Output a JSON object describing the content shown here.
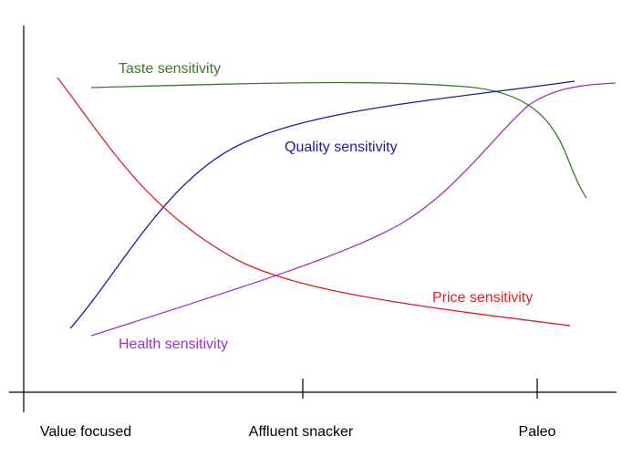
{
  "x_axis": {
    "labels": [
      "Value focused",
      "Affluent snacker",
      "Paleo"
    ]
  },
  "curves": [
    {
      "label": "Taste sensitivity",
      "color": "#3c7a2a"
    },
    {
      "label": "Quality sensitivity",
      "color": "#1a1aa8"
    },
    {
      "label": "Price sensitivity",
      "color": "#e02020"
    },
    {
      "label": "Health sensitivity",
      "color": "#9b2fd1"
    }
  ]
}
